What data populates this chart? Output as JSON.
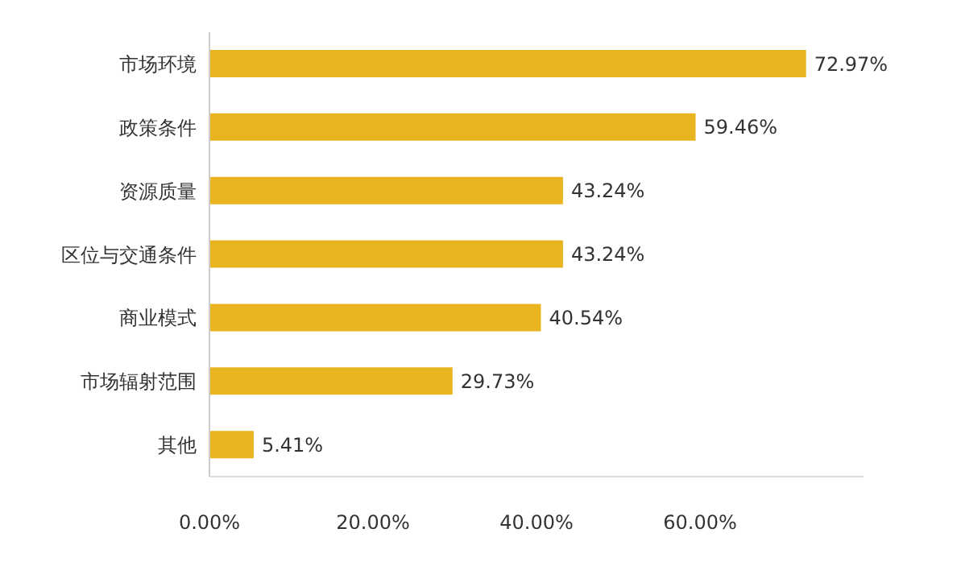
{
  "chart_data": {
    "type": "bar",
    "orientation": "horizontal",
    "categories": [
      "市场环境",
      "政策条件",
      "资源质量",
      "区位与交通条件",
      "商业模式",
      "市场辐射范围",
      "其他"
    ],
    "values": [
      72.97,
      59.46,
      43.24,
      43.24,
      40.54,
      29.73,
      5.41
    ],
    "value_labels": [
      "72.97%",
      "59.46%",
      "43.24%",
      "43.24%",
      "40.54%",
      "29.73%",
      "5.41%"
    ],
    "color": "#e8b420",
    "xlim": [
      0,
      80
    ],
    "xticks": [
      {
        "value": 0,
        "label": "0.00%"
      },
      {
        "value": 20,
        "label": "20.00%"
      },
      {
        "value": 40,
        "label": "40.00%"
      },
      {
        "value": 60,
        "label": "60.00%"
      }
    ],
    "grid": false,
    "legend": false
  }
}
